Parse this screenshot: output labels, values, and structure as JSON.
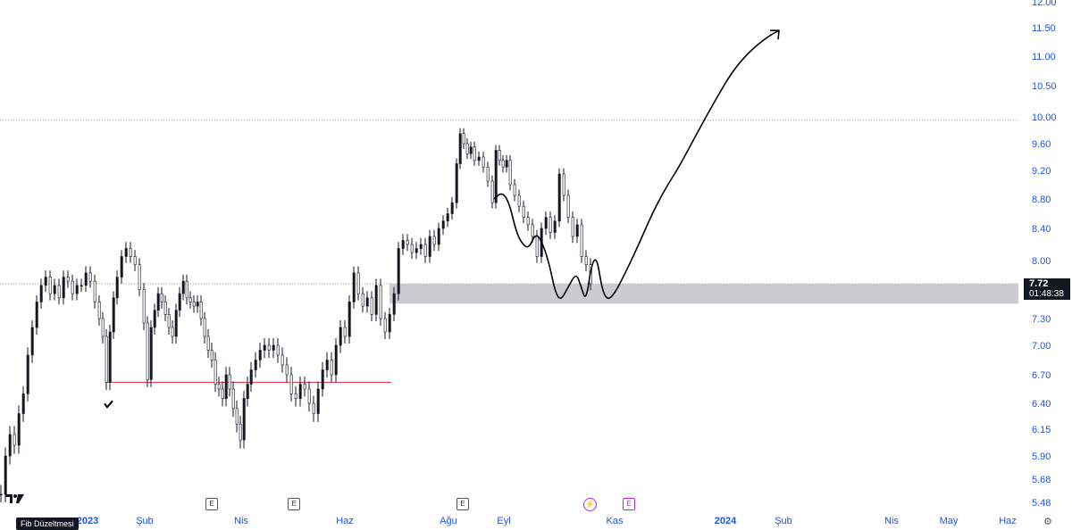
{
  "chart_data": {
    "type": "candlestick",
    "y_ticks": [
      "12.00",
      "11.50",
      "11.00",
      "10.50",
      "10.00",
      "9.60",
      "9.20",
      "8.80",
      "8.40",
      "8.00",
      "7.30",
      "7.00",
      "6.70",
      "6.40",
      "6.15",
      "5.90",
      "5.68",
      "5.48"
    ],
    "x_ticks": [
      {
        "label": "2023",
        "bold": true
      },
      {
        "label": "Şub",
        "bold": false
      },
      {
        "label": "Nis",
        "bold": false
      },
      {
        "label": "Haz",
        "bold": false
      },
      {
        "label": "Ağu",
        "bold": false
      },
      {
        "label": "Eyl",
        "bold": false
      },
      {
        "label": "Kas",
        "bold": false
      },
      {
        "label": "2024",
        "bold": true
      },
      {
        "label": "Şub",
        "bold": false
      },
      {
        "label": "Nis",
        "bold": false
      },
      {
        "label": "May",
        "bold": false
      },
      {
        "label": "Haz",
        "bold": false
      }
    ],
    "last_price": "7.72",
    "countdown": "01:48:38",
    "horizontal_lines": [
      {
        "price": 9.95,
        "style": "dotted",
        "color": "#9598a1"
      },
      {
        "price": 7.72,
        "style": "dotted",
        "color": "#9598a1"
      },
      {
        "price": 6.62,
        "style": "solid",
        "color": "#f23645"
      }
    ],
    "support_zone": {
      "from": 7.48,
      "to": 7.72,
      "color": "#c5c7cc"
    },
    "price_path": [
      [
        0,
        5.55
      ],
      [
        5,
        5.9
      ],
      [
        10,
        6.1
      ],
      [
        15,
        6.0
      ],
      [
        20,
        6.3
      ],
      [
        25,
        6.5
      ],
      [
        30,
        6.9
      ],
      [
        35,
        7.2
      ],
      [
        40,
        7.5
      ],
      [
        45,
        7.7
      ],
      [
        50,
        7.8
      ],
      [
        55,
        7.6
      ],
      [
        60,
        7.7
      ],
      [
        65,
        7.55
      ],
      [
        70,
        7.8
      ],
      [
        75,
        7.75
      ],
      [
        80,
        7.6
      ],
      [
        85,
        7.7
      ],
      [
        90,
        7.7
      ],
      [
        95,
        7.85
      ],
      [
        100,
        7.75
      ],
      [
        105,
        7.5
      ],
      [
        110,
        7.3
      ],
      [
        114,
        7.1
      ],
      [
        118,
        6.62
      ],
      [
        122,
        7.15
      ],
      [
        126,
        7.55
      ],
      [
        130,
        7.8
      ],
      [
        135,
        8.05
      ],
      [
        140,
        8.15
      ],
      [
        145,
        8.05
      ],
      [
        150,
        7.95
      ],
      [
        155,
        7.65
      ],
      [
        160,
        7.25
      ],
      [
        164,
        6.65
      ],
      [
        168,
        7.2
      ],
      [
        172,
        7.4
      ],
      [
        176,
        7.6
      ],
      [
        180,
        7.5
      ],
      [
        184,
        7.35
      ],
      [
        188,
        7.2
      ],
      [
        192,
        7.1
      ],
      [
        196,
        7.4
      ],
      [
        200,
        7.6
      ],
      [
        204,
        7.75
      ],
      [
        208,
        7.55
      ],
      [
        212,
        7.5
      ],
      [
        216,
        7.45
      ],
      [
        220,
        7.5
      ],
      [
        224,
        7.3
      ],
      [
        228,
        7.1
      ],
      [
        232,
        6.95
      ],
      [
        236,
        6.85
      ],
      [
        240,
        6.6
      ],
      [
        244,
        6.55
      ],
      [
        248,
        6.45
      ],
      [
        252,
        6.7
      ],
      [
        256,
        6.55
      ],
      [
        260,
        6.35
      ],
      [
        264,
        6.2
      ],
      [
        268,
        6.05
      ],
      [
        272,
        6.45
      ],
      [
        276,
        6.6
      ],
      [
        280,
        6.75
      ],
      [
        285,
        6.85
      ],
      [
        290,
        6.95
      ],
      [
        295,
        7.0
      ],
      [
        300,
        6.95
      ],
      [
        305,
        7.0
      ],
      [
        310,
        6.9
      ],
      [
        315,
        6.8
      ],
      [
        320,
        6.7
      ],
      [
        325,
        6.5
      ],
      [
        330,
        6.45
      ],
      [
        335,
        6.6
      ],
      [
        340,
        6.55
      ],
      [
        345,
        6.4
      ],
      [
        350,
        6.3
      ],
      [
        355,
        6.55
      ],
      [
        360,
        6.75
      ],
      [
        365,
        6.85
      ],
      [
        370,
        6.7
      ],
      [
        375,
        7.0
      ],
      [
        380,
        7.2
      ],
      [
        385,
        7.1
      ],
      [
        390,
        7.5
      ],
      [
        395,
        7.85
      ],
      [
        400,
        7.6
      ],
      [
        405,
        7.45
      ],
      [
        410,
        7.55
      ],
      [
        415,
        7.35
      ],
      [
        420,
        7.7
      ],
      [
        425,
        7.3
      ],
      [
        430,
        7.15
      ],
      [
        435,
        7.35
      ],
      [
        440,
        7.6
      ],
      [
        445,
        8.15
      ],
      [
        450,
        8.25
      ],
      [
        455,
        8.2
      ],
      [
        460,
        8.1
      ],
      [
        465,
        8.15
      ],
      [
        470,
        8.2
      ],
      [
        475,
        8.05
      ],
      [
        480,
        8.3
      ],
      [
        485,
        8.2
      ],
      [
        490,
        8.4
      ],
      [
        495,
        8.5
      ],
      [
        500,
        8.6
      ],
      [
        505,
        8.75
      ],
      [
        510,
        9.3
      ],
      [
        514,
        9.75
      ],
      [
        518,
        9.6
      ],
      [
        522,
        9.45
      ],
      [
        526,
        9.55
      ],
      [
        530,
        9.35
      ],
      [
        535,
        9.4
      ],
      [
        540,
        9.25
      ],
      [
        545,
        9.05
      ],
      [
        550,
        8.75
      ],
      [
        554,
        9.5
      ],
      [
        558,
        9.35
      ],
      [
        562,
        9.25
      ],
      [
        566,
        9.35
      ],
      [
        570,
        9.0
      ],
      [
        575,
        8.85
      ],
      [
        580,
        8.7
      ],
      [
        585,
        8.55
      ],
      [
        590,
        8.45
      ],
      [
        595,
        8.3
      ],
      [
        600,
        8.05
      ],
      [
        605,
        8.4
      ],
      [
        610,
        8.55
      ],
      [
        615,
        8.35
      ],
      [
        620,
        8.5
      ],
      [
        625,
        9.15
      ],
      [
        630,
        8.85
      ],
      [
        635,
        8.55
      ],
      [
        640,
        8.3
      ],
      [
        645,
        8.45
      ],
      [
        650,
        8.05
      ],
      [
        655,
        7.95
      ],
      [
        660,
        7.72
      ]
    ],
    "drawn_path": {
      "curve": [
        [
          553,
          8.8
        ],
        [
          562,
          8.9
        ],
        [
          570,
          8.75
        ],
        [
          578,
          8.35
        ],
        [
          585,
          8.2
        ],
        [
          592,
          8.15
        ],
        [
          600,
          8.35
        ],
        [
          608,
          8.2
        ],
        [
          615,
          7.95
        ],
        [
          622,
          7.6
        ],
        [
          628,
          7.52
        ],
        [
          636,
          7.68
        ],
        [
          645,
          7.85
        ],
        [
          650,
          7.7
        ],
        [
          656,
          7.5
        ],
        [
          662,
          7.95
        ],
        [
          668,
          8.05
        ],
        [
          674,
          7.65
        ],
        [
          680,
          7.52
        ],
        [
          688,
          7.6
        ],
        [
          700,
          7.85
        ],
        [
          715,
          8.2
        ],
        [
          730,
          8.6
        ],
        [
          745,
          8.95
        ],
        [
          760,
          9.25
        ],
        [
          780,
          9.75
        ],
        [
          800,
          10.25
        ],
        [
          820,
          10.75
        ],
        [
          840,
          11.1
        ],
        [
          860,
          11.35
        ],
        [
          872,
          11.45
        ]
      ],
      "arrow_tip": [
        872,
        11.45
      ]
    },
    "check_mark": {
      "x": 120,
      "price": 6.38
    },
    "event_markers": [
      {
        "type": "E",
        "x_month": "Nis",
        "color": "#555"
      },
      {
        "type": "E",
        "x_month": "Haz",
        "color": "#555"
      },
      {
        "type": "E",
        "x_month": "Ağu",
        "color": "#555"
      },
      {
        "type": "flash",
        "x_month": "Kas",
        "color": "#b02bdc"
      },
      {
        "type": "E",
        "x_month": "Kas",
        "color": "#b02bdc"
      }
    ],
    "candle_up_color": "#131722",
    "candle_down_color": "#131722"
  },
  "toolbar": {
    "fib_label": "Fib Düzeltmesi",
    "logo_text": "17",
    "settings_icon": "gear-icon"
  },
  "markers": {
    "e_label": "E",
    "flash_glyph": "⚡"
  }
}
